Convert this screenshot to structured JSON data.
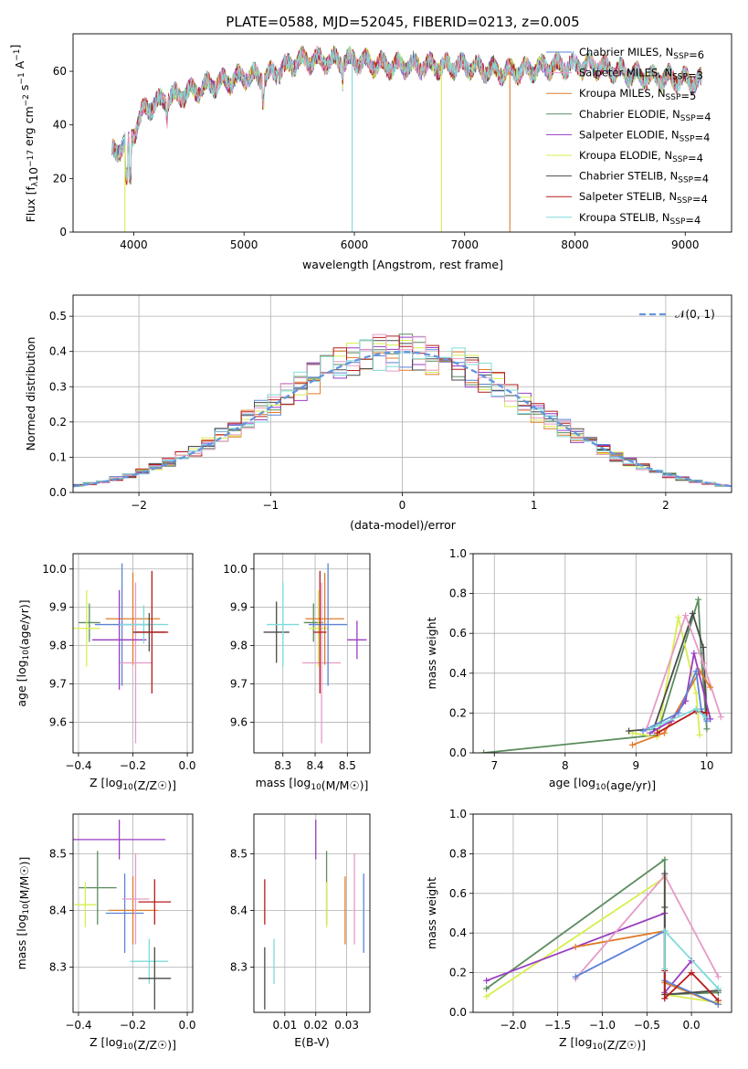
{
  "title": "PLATE=0588, MJD=52045, FIBERID=0213, z=0.005",
  "colors": {
    "blue": "#5b84d6",
    "orange": "#e07b28",
    "green": "#5c8c5e",
    "purple": "#9a3cc0",
    "yellow": "#d8ee4e",
    "dark": "#4a4a4a",
    "red": "#b71c1c",
    "cyan": "#7fdada",
    "pink": "#e79ac6"
  },
  "chart_data": [
    {
      "type": "line",
      "id": "spectrum",
      "xlabel": "wavelength [Angstrom, rest frame]",
      "ylabel": "Flux [f_λ10^-17 erg cm^-2 s^-1 A^-1]",
      "xlim": [
        3450,
        9420
      ],
      "ylim": [
        0,
        74
      ],
      "xticks": [
        "4000",
        "5000",
        "6000",
        "7000",
        "8000",
        "9000"
      ],
      "yticks": [
        "0",
        "20",
        "40",
        "60"
      ],
      "legend": [
        {
          "name": "Chabrier MILES, N_SSP=6",
          "color": "blue"
        },
        {
          "name": "Salpeter MILES, N_SSP=3",
          "color": "pink"
        },
        {
          "name": "Kroupa MILES, N_SSP=5",
          "color": "orange"
        },
        {
          "name": "Chabrier ELODIE, N_SSP=4",
          "color": "green"
        },
        {
          "name": "Salpeter ELODIE, N_SSP=4",
          "color": "purple"
        },
        {
          "name": "Kroupa ELODIE, N_SSP=4",
          "color": "yellow"
        },
        {
          "name": "Chabrier STELIB, N_SSP=4",
          "color": "dark"
        },
        {
          "name": "Salpeter STELIB, N_SSP=4",
          "color": "red"
        },
        {
          "name": "Kroupa STELIB, N_SSP=4",
          "color": "cyan"
        }
      ],
      "legend_position": "top-right",
      "continuum": [
        [
          3800,
          30
        ],
        [
          3950,
          33
        ],
        [
          4100,
          46
        ],
        [
          4300,
          50
        ],
        [
          4500,
          52
        ],
        [
          4700,
          55
        ],
        [
          5000,
          58
        ],
        [
          5200,
          58
        ],
        [
          5500,
          64
        ],
        [
          5800,
          64
        ],
        [
          6000,
          64
        ],
        [
          6300,
          62
        ],
        [
          6600,
          62
        ],
        [
          7000,
          62
        ],
        [
          7300,
          60
        ],
        [
          7500,
          60
        ],
        [
          7800,
          62
        ],
        [
          8200,
          62
        ],
        [
          8600,
          58
        ],
        [
          9000,
          57
        ],
        [
          9150,
          56
        ]
      ],
      "model_drops": [
        {
          "x": 3920,
          "y": 0,
          "color": "yellow"
        },
        {
          "x": 5980,
          "y": 0,
          "color": "cyan"
        },
        {
          "x": 6790,
          "y": 0,
          "color": "yellow"
        },
        {
          "x": 7410,
          "y": 0,
          "color": "orange"
        }
      ]
    },
    {
      "type": "line",
      "id": "residuals",
      "xlabel": "(data-model)/error",
      "ylabel": "Normed distribution",
      "xlim": [
        -2.5,
        2.5
      ],
      "ylim": [
        0,
        0.56
      ],
      "xticks": [
        "-2",
        "-1",
        "0",
        "1",
        "2"
      ],
      "yticks": [
        "0.0",
        "0.1",
        "0.2",
        "0.3",
        "0.4",
        "0.5"
      ],
      "bin_width": 0.1,
      "reference_curve": {
        "name": "𝒩(0, 1)",
        "color": "#6495dd",
        "style": "dashed",
        "mu": 0,
        "sigma": 1
      },
      "legend_position": "top-right"
    },
    {
      "type": "scatter",
      "id": "age-vs-metallicity",
      "xlabel": "Z [log10(Z/Z☉)]",
      "ylabel": "age  [log10(age/yr)]",
      "xlim": [
        -0.42,
        0.02
      ],
      "ylim": [
        9.52,
        10.04
      ],
      "xticks": [
        "-0.4",
        "-0.2",
        "0.0"
      ],
      "yticks": [
        "9.6",
        "9.7",
        "9.8",
        "9.9",
        "10.0"
      ],
      "points": [
        {
          "color": "green",
          "x": -0.36,
          "y": 9.86,
          "xerr": 0.04,
          "yerr": 0.05
        },
        {
          "color": "yellow",
          "x": -0.37,
          "y": 9.845,
          "xerr": 0.05,
          "yerr": 0.1
        },
        {
          "color": "blue",
          "x": -0.24,
          "y": 9.855,
          "xerr": 0.1,
          "yerr": 0.16
        },
        {
          "color": "orange",
          "x": -0.2,
          "y": 9.87,
          "xerr": 0.1,
          "yerr": 0.12
        },
        {
          "color": "pink",
          "x": -0.19,
          "y": 9.755,
          "xerr": 0.06,
          "yerr": 0.21
        },
        {
          "color": "purple",
          "x": -0.25,
          "y": 9.815,
          "xerr": 0.1,
          "yerr": 0.13
        },
        {
          "color": "cyan",
          "x": -0.16,
          "y": 9.855,
          "xerr": 0.09,
          "yerr": 0.05
        },
        {
          "color": "dark",
          "x": -0.14,
          "y": 9.835,
          "xerr": 0.06,
          "yerr": 0.05
        },
        {
          "color": "red",
          "x": -0.13,
          "y": 9.835,
          "xerr": 0.06,
          "yerr": 0.16
        }
      ]
    },
    {
      "type": "scatter",
      "id": "age-vs-mass",
      "xlabel": "mass [log10(M/M☉)]",
      "ylabel": "",
      "xlim": [
        8.21,
        8.57
      ],
      "ylim": [
        9.52,
        10.04
      ],
      "xticks": [
        "8.3",
        "8.4",
        "8.5"
      ],
      "yticks": [
        "9.6",
        "9.7",
        "9.8",
        "9.9",
        "10.0"
      ],
      "points": [
        {
          "color": "dark",
          "x": 8.28,
          "y": 9.835,
          "xerr": 0.04,
          "yerr": 0.08
        },
        {
          "color": "cyan",
          "x": 8.3,
          "y": 9.855,
          "xerr": 0.05,
          "yerr": 0.11
        },
        {
          "color": "green",
          "x": 8.395,
          "y": 9.86,
          "xerr": 0.03,
          "yerr": 0.05
        },
        {
          "color": "yellow",
          "x": 8.41,
          "y": 9.845,
          "xerr": 0.03,
          "yerr": 0.1
        },
        {
          "color": "pink",
          "x": 8.42,
          "y": 9.755,
          "xerr": 0.06,
          "yerr": 0.21
        },
        {
          "color": "orange",
          "x": 8.43,
          "y": 9.87,
          "xerr": 0.06,
          "yerr": 0.12
        },
        {
          "color": "blue",
          "x": 8.44,
          "y": 9.855,
          "xerr": 0.06,
          "yerr": 0.16
        },
        {
          "color": "purple",
          "x": 8.53,
          "y": 9.815,
          "xerr": 0.03,
          "yerr": 0.05
        },
        {
          "color": "red",
          "x": 8.415,
          "y": 9.835,
          "xerr": 0.02,
          "yerr": 0.16
        }
      ]
    },
    {
      "type": "line",
      "id": "mass-weight-vs-age",
      "xlabel": "age  [log10(age/yr)]",
      "ylabel": "mass weight",
      "xlim": [
        6.7,
        10.35
      ],
      "ylim": [
        0,
        1
      ],
      "xticks": [
        "7",
        "8",
        "9",
        "10"
      ],
      "yticks": [
        "0.0",
        "0.2",
        "0.4",
        "0.6",
        "0.8",
        "1.0"
      ],
      "series": [
        {
          "color": "green",
          "x": [
            6.85,
            9.3,
            9.88,
            9.92,
            10.0
          ],
          "y": [
            0.0,
            0.09,
            0.77,
            0.5,
            0.12
          ]
        },
        {
          "color": "yellow",
          "x": [
            8.95,
            9.3,
            9.6,
            9.85,
            9.9
          ],
          "y": [
            0.1,
            0.08,
            0.68,
            0.3,
            0.09
          ]
        },
        {
          "color": "dark",
          "x": [
            8.9,
            9.25,
            9.8,
            9.95,
            10.0
          ],
          "y": [
            0.11,
            0.12,
            0.7,
            0.53,
            0.17
          ]
        },
        {
          "color": "pink",
          "x": [
            9.15,
            9.7,
            9.95,
            10.2
          ],
          "y": [
            0.12,
            0.69,
            0.45,
            0.18
          ]
        },
        {
          "color": "orange",
          "x": [
            8.95,
            9.4,
            9.9,
            10.05
          ],
          "y": [
            0.04,
            0.1,
            0.41,
            0.33
          ]
        },
        {
          "color": "purple",
          "x": [
            9.2,
            9.5,
            9.7,
            9.82,
            10.05
          ],
          "y": [
            0.1,
            0.16,
            0.26,
            0.5,
            0.17
          ]
        },
        {
          "color": "blue",
          "x": [
            9.1,
            9.6,
            9.85,
            9.92,
            10.0
          ],
          "y": [
            0.11,
            0.2,
            0.41,
            0.22,
            0.16
          ]
        },
        {
          "color": "red",
          "x": [
            9.3,
            9.85,
            10.0
          ],
          "y": [
            0.1,
            0.21,
            0.2
          ]
        },
        {
          "color": "cyan",
          "x": [
            9.2,
            9.85,
            9.98
          ],
          "y": [
            0.12,
            0.22,
            0.18
          ]
        }
      ]
    },
    {
      "type": "scatter",
      "id": "mass-vs-metallicity",
      "xlabel": "Z [log10(Z/Z☉)]",
      "ylabel": "mass [log10(M/M☉)]",
      "xlim": [
        -0.42,
        0.02
      ],
      "ylim": [
        8.22,
        8.57
      ],
      "xticks": [
        "-0.4",
        "-0.2",
        "0.0"
      ],
      "yticks": [
        "8.3",
        "8.4",
        "8.5"
      ],
      "points": [
        {
          "color": "purple",
          "x": -0.25,
          "y": 8.525,
          "xerr": 0.17,
          "yerr": 0.035
        },
        {
          "color": "green",
          "x": -0.33,
          "y": 8.44,
          "xerr": 0.07,
          "yerr": 0.065
        },
        {
          "color": "yellow",
          "x": -0.375,
          "y": 8.41,
          "xerr": 0.04,
          "yerr": 0.04
        },
        {
          "color": "blue",
          "x": -0.23,
          "y": 8.395,
          "xerr": 0.07,
          "yerr": 0.07
        },
        {
          "color": "orange",
          "x": -0.2,
          "y": 8.4,
          "xerr": 0.09,
          "yerr": 0.06
        },
        {
          "color": "pink",
          "x": -0.19,
          "y": 8.42,
          "xerr": 0.05,
          "yerr": 0.08
        },
        {
          "color": "red",
          "x": -0.12,
          "y": 8.415,
          "xerr": 0.06,
          "yerr": 0.04
        },
        {
          "color": "cyan",
          "x": -0.14,
          "y": 8.31,
          "xerr": 0.07,
          "yerr": 0.04
        },
        {
          "color": "dark",
          "x": -0.12,
          "y": 8.28,
          "xerr": 0.06,
          "yerr": 0.055
        }
      ]
    },
    {
      "type": "scatter",
      "id": "mass-vs-extinction",
      "xlabel": "E(B-V)",
      "ylabel": "",
      "xlim": [
        0.0,
        0.0375
      ],
      "ylim": [
        8.22,
        8.57
      ],
      "xticks": [
        "0.01",
        "0.02",
        "0.03"
      ],
      "yticks": [
        "8.3",
        "8.4",
        "8.5"
      ],
      "points": [
        {
          "color": "dark",
          "x": 0.0035,
          "y": 8.28,
          "yerr": 0.055
        },
        {
          "color": "red",
          "x": 0.0035,
          "y": 8.415,
          "yerr": 0.04
        },
        {
          "color": "cyan",
          "x": 0.0065,
          "y": 8.31,
          "yerr": 0.04
        },
        {
          "color": "purple",
          "x": 0.02,
          "y": 8.525,
          "yerr": 0.035
        },
        {
          "color": "green",
          "x": 0.0235,
          "y": 8.44,
          "yerr": 0.065
        },
        {
          "color": "yellow",
          "x": 0.0235,
          "y": 8.41,
          "yerr": 0.04
        },
        {
          "color": "orange",
          "x": 0.0295,
          "y": 8.4,
          "yerr": 0.06
        },
        {
          "color": "pink",
          "x": 0.0325,
          "y": 8.42,
          "yerr": 0.08
        },
        {
          "color": "blue",
          "x": 0.0355,
          "y": 8.395,
          "yerr": 0.07
        }
      ]
    },
    {
      "type": "line",
      "id": "mass-weight-vs-metallicity",
      "xlabel": "Z [log10(Z/Z☉)]",
      "ylabel": "mass weight",
      "xlim": [
        -2.45,
        0.45
      ],
      "ylim": [
        0,
        1
      ],
      "xticks": [
        "-2.0",
        "-1.5",
        "-1.0",
        "-0.5",
        "0.0"
      ],
      "yticks": [
        "0.0",
        "0.2",
        "0.4",
        "0.6",
        "0.8",
        "1.0"
      ],
      "series": [
        {
          "color": "green",
          "x": [
            -2.3,
            -0.3,
            -0.3,
            0.3
          ],
          "y": [
            0.12,
            0.77,
            0.09,
            0.1
          ]
        },
        {
          "color": "yellow",
          "x": [
            -2.3,
            -0.3,
            -0.3,
            0.3
          ],
          "y": [
            0.08,
            0.68,
            0.09,
            0.05
          ]
        },
        {
          "color": "purple",
          "x": [
            -2.3,
            -0.3,
            -0.3,
            0.0
          ],
          "y": [
            0.16,
            0.5,
            0.1,
            0.26
          ]
        },
        {
          "color": "orange",
          "x": [
            -1.3,
            -0.3,
            -0.3,
            0.3
          ],
          "y": [
            0.33,
            0.41,
            0.15,
            0.04
          ]
        },
        {
          "color": "pink",
          "x": [
            -1.3,
            -0.3,
            0.3
          ],
          "y": [
            0.17,
            0.69,
            0.18
          ]
        },
        {
          "color": "blue",
          "x": [
            -1.3,
            -0.3,
            -0.3,
            0.3
          ],
          "y": [
            0.18,
            0.41,
            0.16,
            0.04
          ]
        },
        {
          "color": "dark",
          "x": [
            -0.3,
            -0.3,
            -0.3,
            0.3
          ],
          "y": [
            0.7,
            0.53,
            0.09,
            0.11
          ]
        },
        {
          "color": "red",
          "x": [
            -0.3,
            -0.3,
            0.0,
            0.3
          ],
          "y": [
            0.21,
            0.07,
            0.2,
            0.06
          ]
        },
        {
          "color": "cyan",
          "x": [
            -0.3,
            -0.3,
            0.3
          ],
          "y": [
            0.22,
            0.41,
            0.12
          ]
        }
      ]
    }
  ]
}
